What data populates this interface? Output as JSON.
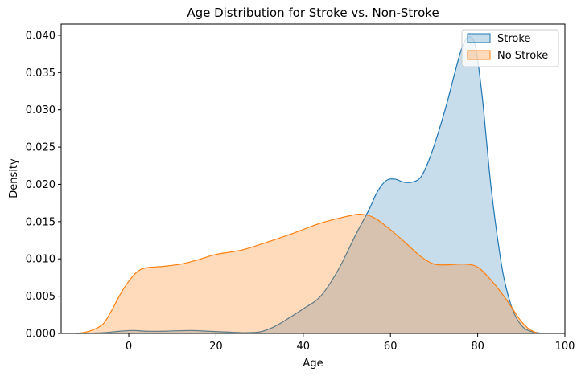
{
  "chart_data": {
    "type": "area",
    "title": "Age Distribution for Stroke vs. Non-Stroke",
    "xlabel": "Age",
    "ylabel": "Density",
    "xlim": [
      -15.5,
      100
    ],
    "ylim": [
      0,
      0.0415
    ],
    "x_ticks": [
      0,
      20,
      40,
      60,
      80,
      100
    ],
    "y_ticks": [
      0.0,
      0.005,
      0.01,
      0.015,
      0.02,
      0.025,
      0.03,
      0.035,
      0.04
    ],
    "y_tick_labels": [
      "0.000",
      "0.005",
      "0.010",
      "0.015",
      "0.020",
      "0.025",
      "0.030",
      "0.035",
      "0.040"
    ],
    "legend_position": "top-right",
    "grid": false,
    "series": [
      {
        "name": "Stroke",
        "line_color": "#1f77b4",
        "fill_color": "#1f77b4",
        "fill_opacity": 0.25,
        "points": [
          [
            -12,
            0.0
          ],
          [
            -6,
            0.0001
          ],
          [
            -2,
            0.0003
          ],
          [
            1,
            0.0004
          ],
          [
            4,
            0.0003
          ],
          [
            8,
            0.0003
          ],
          [
            14,
            0.0004
          ],
          [
            18,
            0.0003
          ],
          [
            22,
            0.0002
          ],
          [
            26,
            0.0001
          ],
          [
            30,
            0.0002
          ],
          [
            33,
            0.0008
          ],
          [
            36,
            0.0018
          ],
          [
            40,
            0.0033
          ],
          [
            44,
            0.005
          ],
          [
            48,
            0.0085
          ],
          [
            52,
            0.0132
          ],
          [
            55,
            0.0165
          ],
          [
            57,
            0.019
          ],
          [
            59,
            0.0205
          ],
          [
            61,
            0.0207
          ],
          [
            63,
            0.0203
          ],
          [
            65,
            0.0203
          ],
          [
            67,
            0.021
          ],
          [
            69,
            0.0235
          ],
          [
            71,
            0.027
          ],
          [
            73,
            0.031
          ],
          [
            75,
            0.0355
          ],
          [
            76.5,
            0.0385
          ],
          [
            78,
            0.0398
          ],
          [
            79.5,
            0.0385
          ],
          [
            81,
            0.032
          ],
          [
            82,
            0.026
          ],
          [
            83,
            0.02
          ],
          [
            84.5,
            0.013
          ],
          [
            86,
            0.0075
          ],
          [
            88,
            0.0032
          ],
          [
            90,
            0.0011
          ],
          [
            92,
            0.0003
          ],
          [
            95,
            0.0
          ]
        ]
      },
      {
        "name": "No Stroke",
        "line_color": "#ff7f0e",
        "fill_color": "#ff7f0e",
        "fill_opacity": 0.28,
        "points": [
          [
            -12,
            0.0
          ],
          [
            -9,
            0.0003
          ],
          [
            -6,
            0.0012
          ],
          [
            -4,
            0.003
          ],
          [
            -2,
            0.0052
          ],
          [
            0,
            0.007
          ],
          [
            2,
            0.0083
          ],
          [
            4,
            0.0088
          ],
          [
            8,
            0.009
          ],
          [
            12,
            0.0093
          ],
          [
            16,
            0.0099
          ],
          [
            20,
            0.0106
          ],
          [
            26,
            0.0112
          ],
          [
            32,
            0.0123
          ],
          [
            38,
            0.0135
          ],
          [
            44,
            0.0148
          ],
          [
            50,
            0.0157
          ],
          [
            53,
            0.016
          ],
          [
            56,
            0.0156
          ],
          [
            59,
            0.0144
          ],
          [
            63,
            0.0124
          ],
          [
            67,
            0.0103
          ],
          [
            70,
            0.0093
          ],
          [
            73,
            0.0092
          ],
          [
            77,
            0.0093
          ],
          [
            80,
            0.0089
          ],
          [
            83,
            0.0072
          ],
          [
            86,
            0.005
          ],
          [
            88,
            0.0033
          ],
          [
            90,
            0.0016
          ],
          [
            92,
            0.0005
          ],
          [
            94,
            0.0
          ]
        ]
      }
    ]
  }
}
